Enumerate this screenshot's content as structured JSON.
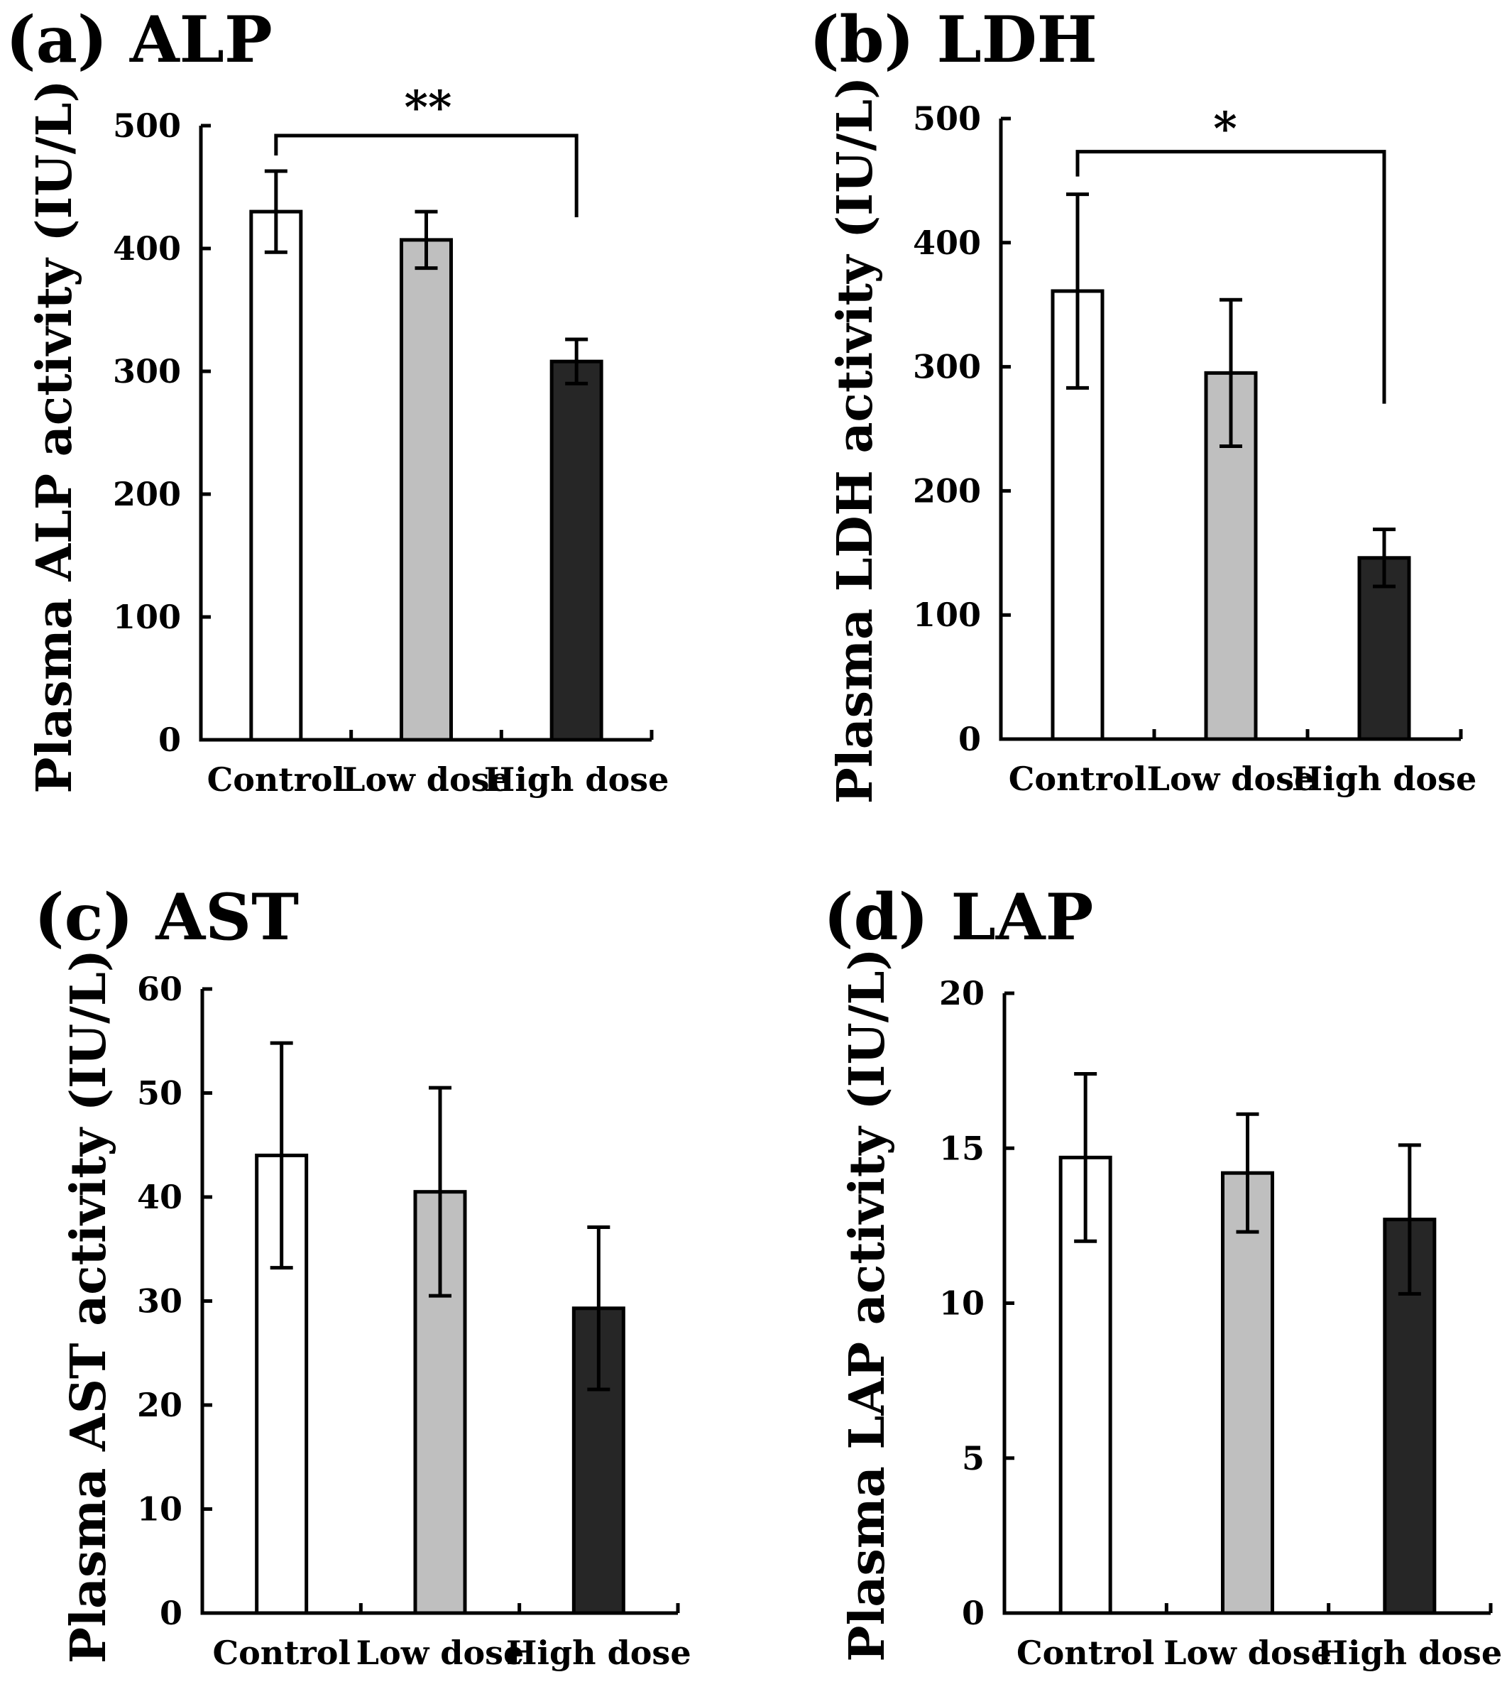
{
  "chart_data": [
    {
      "type": "bar",
      "panel": "(a)",
      "title": "ALP",
      "ylabel": "Plasma ALP activity (IU/L)",
      "categories": [
        "Control",
        "Low dose",
        "High dose"
      ],
      "values": [
        430,
        407,
        308
      ],
      "errors": [
        33,
        23,
        18
      ],
      "colors": [
        "#ffffff",
        "#bfbfbf",
        "#262626"
      ],
      "ylim": [
        0,
        500
      ],
      "yticks": [
        "0",
        "100",
        "200",
        "300",
        "400",
        "500"
      ],
      "significance": {
        "from": "Control",
        "to": "High dose",
        "label": "**"
      }
    },
    {
      "type": "bar",
      "panel": "(b)",
      "title": "LDH",
      "ylabel": "Plasma LDH activity (IU/L)",
      "categories": [
        "Control",
        "Low dose",
        "High dose"
      ],
      "values": [
        361,
        295,
        146
      ],
      "errors": [
        78,
        59,
        23
      ],
      "colors": [
        "#ffffff",
        "#bfbfbf",
        "#262626"
      ],
      "ylim": [
        0,
        500
      ],
      "yticks": [
        "0",
        "100",
        "200",
        "300",
        "400",
        "500"
      ],
      "significance": {
        "from": "Control",
        "to": "High dose",
        "label": "*"
      }
    },
    {
      "type": "bar",
      "panel": "(c)",
      "title": "AST",
      "ylabel": "Plasma AST activity (IU/L)",
      "categories": [
        "Control",
        "Low dose",
        "High dose"
      ],
      "values": [
        44,
        40.5,
        29.3
      ],
      "errors": [
        10.8,
        10,
        7.8
      ],
      "colors": [
        "#ffffff",
        "#bfbfbf",
        "#262626"
      ],
      "ylim": [
        0,
        60
      ],
      "yticks": [
        "0",
        "10",
        "20",
        "30",
        "40",
        "50",
        "60"
      ]
    },
    {
      "type": "bar",
      "panel": "(d)",
      "title": "LAP",
      "ylabel": "Plasma LAP activity (IU/L)",
      "categories": [
        "Control",
        "Low dose",
        "High dose"
      ],
      "values": [
        14.7,
        14.2,
        12.7
      ],
      "errors": [
        2.7,
        1.9,
        2.4
      ],
      "colors": [
        "#ffffff",
        "#bfbfbf",
        "#262626"
      ],
      "ylim": [
        0,
        20
      ],
      "yticks": [
        "0",
        "5",
        "10",
        "15",
        "20"
      ]
    }
  ]
}
